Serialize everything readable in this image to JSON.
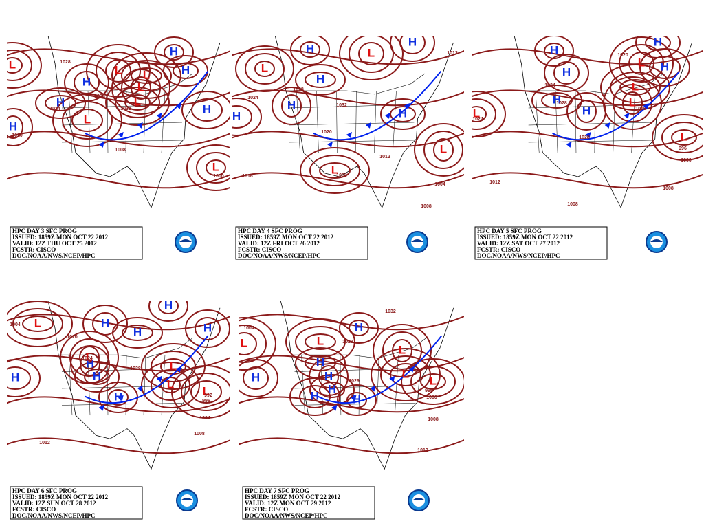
{
  "panels": [
    {
      "info": [
        "HPC DAY 3 SFC PROG",
        "ISSUED: 1859Z MON OCT 22 2012",
        "VALID: 12Z THU OCT 25 2012",
        "FCSTR: CISCO",
        "DOC/NOAA/NWS/NCEP/HPC"
      ],
      "labels": [
        "H",
        "H",
        "H",
        "H",
        "H",
        "H",
        "L",
        "L",
        "L",
        "L",
        "L",
        "L",
        "L",
        "1020",
        "1024",
        "1028",
        "1032",
        "1008",
        "1000",
        "1028"
      ]
    },
    {
      "info": [
        "HPC DAY 4 SFC PROG",
        "ISSUED: 1859Z MON OCT 22 2012",
        "VALID: 12Z FRI OCT 26 2012",
        "FCSTR: CISCO",
        "DOC/NOAA/NWS/NCEP/HPC"
      ],
      "labels": [
        "H",
        "H",
        "H",
        "H",
        "H",
        "H",
        "L",
        "L",
        "L",
        "L",
        "1024",
        "1028",
        "1032",
        "1020",
        "1016",
        "1008",
        "1012",
        "1004",
        "1008",
        "1012"
      ]
    },
    {
      "info": [
        "HPC DAY 5 SFC PROG",
        "ISSUED: 1859Z MON OCT 22 2012",
        "VALID: 12Z SAT OCT 27 2012",
        "FCSTR: CISCO",
        "DOC/NOAA/NWS/NCEP/HPC"
      ],
      "labels": [
        "H",
        "H",
        "H",
        "H",
        "H",
        "H",
        "L",
        "L",
        "L",
        "L",
        "L",
        "1024",
        "1024",
        "1028",
        "1028",
        "1012",
        "1008",
        "1008",
        "996",
        "1000",
        "1016",
        "1020"
      ]
    },
    {
      "info": [
        "HPC DAY 6 SFC PROG",
        "ISSUED: 1859Z MON OCT 22 2012",
        "VALID: 12Z SUN OCT 28 2012",
        "FCSTR: CISCO",
        "DOC/NOAA/NWS/NCEP/HPC"
      ],
      "labels": [
        "H",
        "H",
        "H",
        "H",
        "H",
        "H",
        "H",
        "H",
        "L",
        "L",
        "L",
        "L",
        "L",
        "1004",
        "1020",
        "1024",
        "1028",
        "1012",
        "1008",
        "1004",
        "996",
        "992"
      ]
    },
    {
      "info": [
        "HPC DAY 7 SFC PROG",
        "ISSUED: 1859Z MON OCT 22 2012",
        "VALID: 12Z MON OCT 29 2012",
        "FCSTR: CISCO",
        "DOC/NOAA/NWS/NCEP/HPC"
      ],
      "labels": [
        "H",
        "H",
        "H",
        "H",
        "H",
        "H",
        "H",
        "L",
        "L",
        "L",
        "L",
        "L",
        "1004",
        "1028",
        "1029",
        "1012",
        "1008",
        "1000",
        "996",
        "1032"
      ]
    }
  ]
}
